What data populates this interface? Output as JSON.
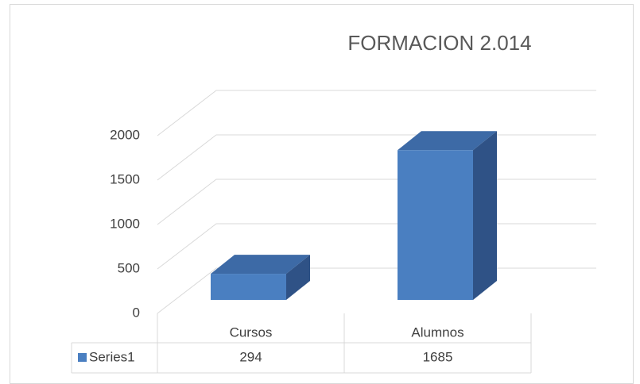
{
  "chart_data": {
    "type": "bar3d",
    "title": "FORMACION 2.014",
    "categories": [
      "Cursos",
      "Alumnos"
    ],
    "series": [
      {
        "name": "Series1",
        "color": "#4a7fc1",
        "values": [
          294,
          1685
        ]
      }
    ],
    "ylim": [
      0,
      2000
    ],
    "yticks": [
      0,
      500,
      1000,
      1500,
      2000
    ],
    "grid": true,
    "data_table": true
  }
}
